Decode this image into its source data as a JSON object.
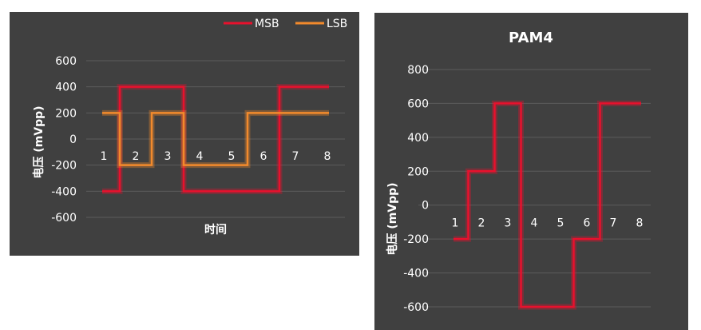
{
  "chart_data": [
    {
      "type": "line",
      "step": true,
      "title": "",
      "xlabel": "时间",
      "ylabel": "电压 (mVpp)",
      "ylim": [
        -600,
        600
      ],
      "yticks": [
        600,
        400,
        200,
        0,
        -200,
        -400,
        -600
      ],
      "categories": [
        "1",
        "2",
        "3",
        "4",
        "5",
        "6",
        "7",
        "8"
      ],
      "grid": true,
      "legend": "top-right",
      "series": [
        {
          "name": "MSB",
          "color": "#e8112d",
          "values": [
            -400,
            400,
            400,
            -400,
            -400,
            -400,
            400,
            400
          ]
        },
        {
          "name": "LSB",
          "color": "#f28a2c",
          "values": [
            200,
            -200,
            200,
            -200,
            -200,
            200,
            200,
            200
          ]
        }
      ]
    },
    {
      "type": "line",
      "step": true,
      "title": "PAM4",
      "xlabel": "",
      "ylabel": "电压 (mVpp)",
      "ylim": [
        -600,
        800
      ],
      "yticks": [
        800,
        600,
        400,
        200,
        0,
        -200,
        -400,
        -600
      ],
      "categories": [
        "1",
        "2",
        "3",
        "4",
        "5",
        "6",
        "7",
        "8"
      ],
      "grid": true,
      "series": [
        {
          "color": "#e8112d",
          "values": [
            -200,
            200,
            600,
            -600,
            -600,
            -200,
            600,
            600
          ]
        }
      ]
    }
  ]
}
